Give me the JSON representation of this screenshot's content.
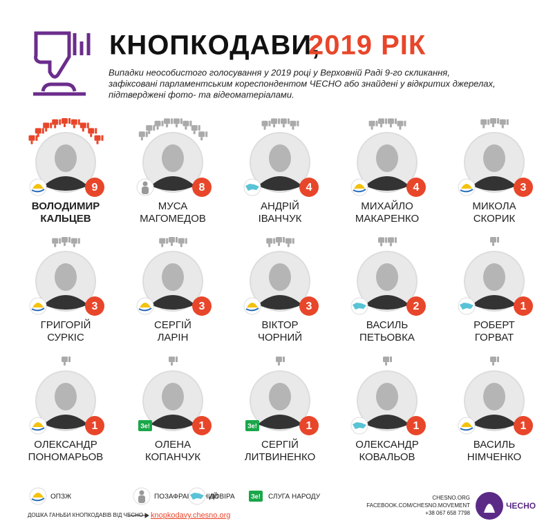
{
  "header": {
    "title": "КНОПКОДАВИ,",
    "title_year": "2019 РІК",
    "subtitle": [
      "Випадки неособистого голосування у 2019 році у Верховній Раді 9-го скликання,",
      "зафіксовані парламентським кореспондентом ЧЕСНО або знайдені у відкритих джерелах,",
      "підтверджені фото- та відеоматеріалами."
    ]
  },
  "people": [
    {
      "name": [
        "ВОЛОДИМИР",
        "КАЛЬЦЕВ"
      ],
      "count": 9
    },
    {
      "name": [
        "МУСА",
        "МАГОМЕДОВ"
      ],
      "count": 8
    },
    {
      "name": [
        "АНДРІЙ",
        "ІВАНЧУК"
      ],
      "count": 4
    },
    {
      "name": [
        "МИХАЙЛО",
        "МАКАРЕНКО"
      ],
      "count": 4
    },
    {
      "name": [
        "МИКОЛА",
        "СКОРИК"
      ],
      "count": 3
    },
    {
      "name": [
        "ГРИГОРІЙ",
        "СУРКІС"
      ],
      "count": 3
    },
    {
      "name": [
        "СЕРГІЙ",
        "ЛАРІН"
      ],
      "count": 3
    },
    {
      "name": [
        "ВІКТОР",
        "ЧОРНИЙ"
      ],
      "count": 3
    },
    {
      "name": [
        "ВАСИЛЬ",
        "ПЕТЬОВКА"
      ],
      "count": 2
    },
    {
      "name": [
        "РОБЕРТ",
        "ГОРВАТ"
      ],
      "count": 1
    },
    {
      "name": [
        "ОЛЕКСАНДР",
        "ПОНОМАРЬОВ"
      ],
      "count": 1
    },
    {
      "name": [
        "ОЛЕНА",
        "КОПАНЧУК"
      ],
      "count": 1
    },
    {
      "name": [
        "СЕРГІЙ",
        "ЛИТВИНЕНКО"
      ],
      "count": 1
    },
    {
      "name": [
        "ОЛЕКСАНДР",
        "КОВАЛЬОВ"
      ],
      "count": 1
    },
    {
      "name": [
        "ВАСИЛЬ",
        "НІМЧЕНКО"
      ],
      "count": 1
    }
  ],
  "legend": {
    "items": [
      {
        "label": "ОПЗЖ"
      },
      {
        "label": "ПОЗАФРАКЦІЙНИЙ"
      },
      {
        "label": "ДОВІРА"
      },
      {
        "badge": "Зе!",
        "label": "СЛУГА НАРОДУ"
      }
    ]
  },
  "footer": {
    "note": "ДОШКА ГАНЬБИ КНОПКОДАВІВ ВІД ЧЕСНО",
    "link": "knopkodavy.chesno.org",
    "contacts": [
      "CHESNO.ORG",
      "FACEBOOK.COM/CHESNO.MOVEMENT",
      "+38 067 658 7798"
    ],
    "logo": "ЧЕСНО"
  }
}
